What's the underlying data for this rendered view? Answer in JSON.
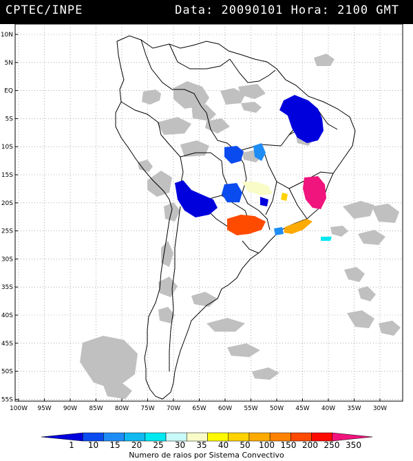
{
  "header": {
    "source": "CPTEC/INPE",
    "date_label": "Data:",
    "date": "20090101",
    "hour_label": "Hora:",
    "hour": "2100 GMT"
  },
  "map": {
    "lat_labels": [
      "10N",
      "5N",
      "EQ",
      "5S",
      "10S",
      "15S",
      "20S",
      "25S",
      "30S",
      "35S",
      "40S",
      "45S",
      "50S",
      "55S"
    ],
    "lon_labels": [
      "100W",
      "95W",
      "90W",
      "85W",
      "80W",
      "75W",
      "70W",
      "65W",
      "60W",
      "55W",
      "50W",
      "45W",
      "40W",
      "35W",
      "30W"
    ]
  },
  "colorbar": {
    "title": "Numero de raios por Sistema Convectivo",
    "ticks": [
      "1",
      "10",
      "15",
      "20",
      "25",
      "30",
      "35",
      "40",
      "50",
      "100",
      "150",
      "200",
      "250",
      "350"
    ],
    "colors": [
      "#0000dd",
      "#0a4bf0",
      "#1e8cf5",
      "#10b9f0",
      "#00e8f0",
      "#c8fafa",
      "#fafcc8",
      "#fffa00",
      "#ffd200",
      "#ffaa00",
      "#ff8200",
      "#ff4b00",
      "#ff0a00",
      "#f0147d"
    ]
  },
  "cloud_color": "#c0c0c0",
  "lightning_systems": [
    {
      "region": "northeast-brazil",
      "class": "1"
    },
    {
      "region": "central-brazil",
      "class": "10"
    },
    {
      "region": "bolivia",
      "class": "1"
    },
    {
      "region": "minas-gerais",
      "class": "350"
    },
    {
      "region": "paraguay-parana",
      "class": "200"
    },
    {
      "region": "sao-paulo-coast",
      "class": "150"
    },
    {
      "region": "atlantic-offshore",
      "class": "25"
    },
    {
      "region": "goias",
      "class": "30"
    }
  ]
}
